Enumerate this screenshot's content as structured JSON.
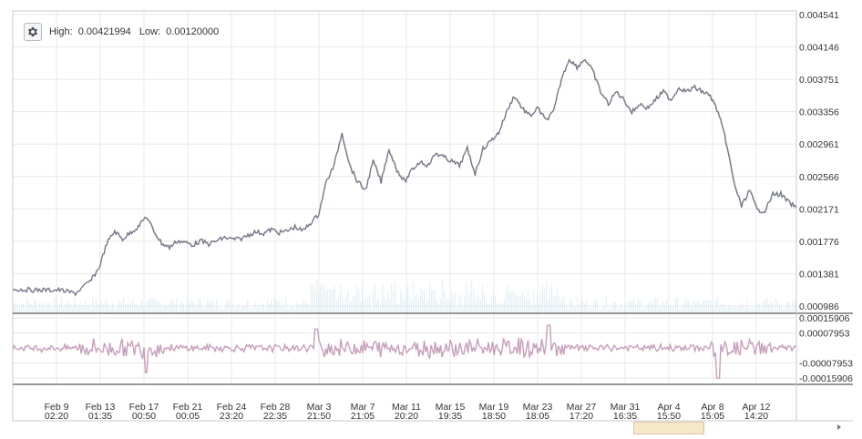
{
  "header": {
    "high_label": "High:",
    "high_value": "0.00421994",
    "low_label": "Low:",
    "low_value": "0.00120000",
    "settings_icon": "gear-icon"
  },
  "colors": {
    "price_line": "#6e7690",
    "price_shadow": "#c9a24a",
    "osc_line": "#c49ac4",
    "volume": "#cfe6ec",
    "grid": "#e8e8e8",
    "border": "#777777",
    "scroll_thumb": "#f7e7c9"
  },
  "chart_data": [
    {
      "type": "line",
      "name": "price",
      "ylim": [
        0.000986,
        0.004541
      ],
      "yticks": [
        "0.004541",
        "0.004146",
        "0.003751",
        "0.003356",
        "0.002961",
        "0.002566",
        "0.002171",
        "0.001776",
        "0.001381",
        "0.000986"
      ],
      "ytick_values": [
        0.004541,
        0.004146,
        0.003751,
        0.003356,
        0.002961,
        0.002566,
        0.002171,
        0.001776,
        0.001381,
        0.000986
      ],
      "x_index_range": [
        0,
        100
      ],
      "series": [
        {
          "x": [
            0,
            3,
            6,
            8,
            10,
            11,
            12,
            13,
            14,
            15,
            16,
            17,
            18,
            19,
            20,
            21,
            22,
            23,
            24,
            25,
            26,
            27,
            28,
            29,
            30,
            31,
            32,
            33,
            34,
            35,
            36,
            37,
            38,
            39,
            40,
            41,
            42,
            43,
            44,
            45,
            46,
            47,
            48,
            49,
            50,
            51,
            52,
            53,
            54,
            55,
            56,
            57,
            58,
            59,
            60,
            61,
            62,
            63,
            64,
            65,
            66,
            67,
            68,
            69,
            70,
            71,
            72,
            73,
            74,
            75,
            76,
            77,
            78,
            79,
            80,
            81,
            82,
            83,
            84,
            85,
            86,
            87,
            88,
            89,
            90,
            91,
            92,
            93,
            94,
            95,
            96,
            97,
            98,
            99,
            100
          ],
          "values": [
            0.00119,
            0.00118,
            0.00118,
            0.00114,
            0.0013,
            0.00145,
            0.00175,
            0.0019,
            0.0018,
            0.00188,
            0.00195,
            0.00208,
            0.0019,
            0.00175,
            0.0017,
            0.00178,
            0.00176,
            0.00173,
            0.00178,
            0.00174,
            0.00178,
            0.00182,
            0.0018,
            0.0018,
            0.00185,
            0.00189,
            0.00187,
            0.00192,
            0.00188,
            0.0019,
            0.00195,
            0.0019,
            0.002,
            0.0021,
            0.0025,
            0.0027,
            0.0031,
            0.0027,
            0.0025,
            0.0024,
            0.00275,
            0.0025,
            0.0029,
            0.00265,
            0.0025,
            0.00265,
            0.00275,
            0.0027,
            0.00285,
            0.0028,
            0.00275,
            0.0027,
            0.0029,
            0.0026,
            0.0029,
            0.003,
            0.0031,
            0.00335,
            0.00355,
            0.0034,
            0.0033,
            0.0034,
            0.00325,
            0.00335,
            0.00375,
            0.004,
            0.0039,
            0.004,
            0.00385,
            0.0036,
            0.00345,
            0.0036,
            0.0035,
            0.00335,
            0.00345,
            0.0034,
            0.0035,
            0.0036,
            0.0035,
            0.00365,
            0.0036,
            0.00365,
            0.0036,
            0.00355,
            0.00335,
            0.003,
            0.0025,
            0.0022,
            0.0024,
            0.00215,
            0.00215,
            0.00235,
            0.00235,
            0.00225,
            0.00218
          ]
        }
      ]
    },
    {
      "type": "line",
      "name": "oscillator",
      "ylim": [
        -0.00015906,
        0.00015906
      ],
      "yticks": [
        "0.00015906",
        "0.00007953",
        "-0.00007953",
        "-0.00015906"
      ],
      "ytick_values": [
        0.00015906,
        7.953e-05,
        -7.953e-05,
        -0.00015906
      ]
    }
  ],
  "xaxis": {
    "ticks": [
      {
        "date": "Feb 9",
        "time": "02:20"
      },
      {
        "date": "Feb 13",
        "time": "01:35"
      },
      {
        "date": "Feb 17",
        "time": "00:50"
      },
      {
        "date": "Feb 21",
        "time": "00:05"
      },
      {
        "date": "Feb 24",
        "time": "23:20"
      },
      {
        "date": "Feb 28",
        "time": "22:35"
      },
      {
        "date": "Mar 3",
        "time": "21:50"
      },
      {
        "date": "Mar 7",
        "time": "21:05"
      },
      {
        "date": "Mar 11",
        "time": "20:20"
      },
      {
        "date": "Mar 15",
        "time": "19:35"
      },
      {
        "date": "Mar 19",
        "time": "18:50"
      },
      {
        "date": "Mar 23",
        "time": "18:05"
      },
      {
        "date": "Mar 27",
        "time": "17:20"
      },
      {
        "date": "Mar 31",
        "time": "16:35"
      },
      {
        "date": "Apr 4",
        "time": "15:50"
      },
      {
        "date": "Apr 8",
        "time": "15:05"
      },
      {
        "date": "Apr 12",
        "time": "14:20"
      }
    ]
  }
}
